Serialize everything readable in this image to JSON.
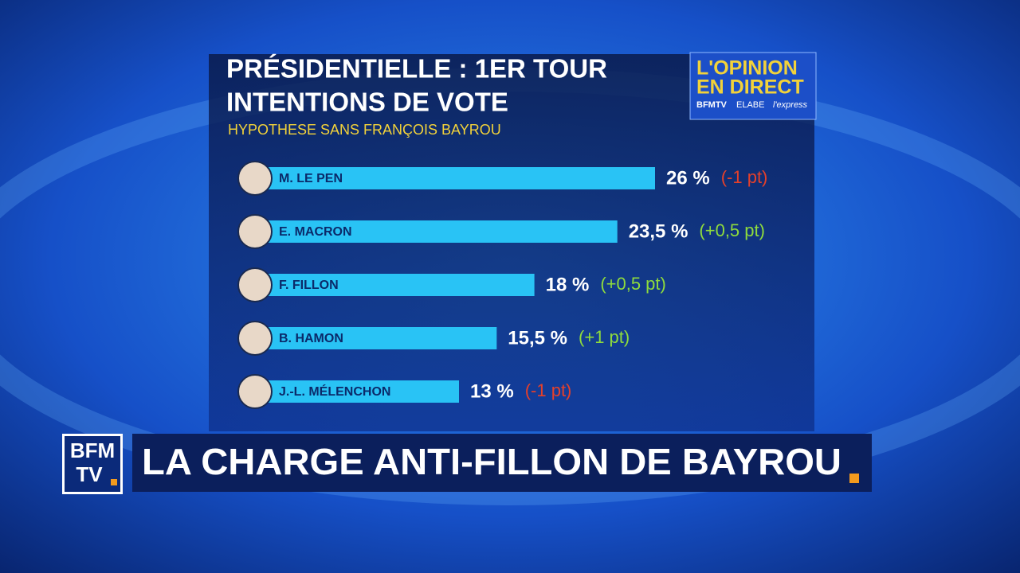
{
  "chart_data": {
    "type": "bar",
    "title": [
      "PRÉSIDENTIELLE : 1ER TOUR",
      "INTENTIONS DE VOTE"
    ],
    "subtitle": "HYPOTHESE SANS FRANÇOIS BAYROU",
    "categories": [
      "M. LE PEN",
      "E. MACRON",
      "F. FILLON",
      "B. HAMON",
      "J.-L. MÉLENCHON"
    ],
    "values": [
      26,
      23.5,
      18,
      15.5,
      13
    ],
    "value_labels": [
      "26 %",
      "23,5 %",
      "18 %",
      "15,5 %",
      "13 %"
    ],
    "changes": [
      "(-1 pt)",
      "(+0,5 pt)",
      "(+0,5 pt)",
      "(+1 pt)",
      "(-1 pt)"
    ],
    "change_colors": [
      "#e5402a",
      "#8fdc3c",
      "#8fdc3c",
      "#8fdc3c",
      "#e5402a"
    ],
    "color": "#29c3f5"
  },
  "logo": {
    "line1": "L'OPINION",
    "line2": "EN DIRECT",
    "partners": [
      "BFMTV",
      "ELABE",
      "l'express"
    ]
  },
  "channel": [
    "BFM",
    "TV"
  ],
  "banner": "LA CHARGE ANTI-FILLON DE BAYROU"
}
